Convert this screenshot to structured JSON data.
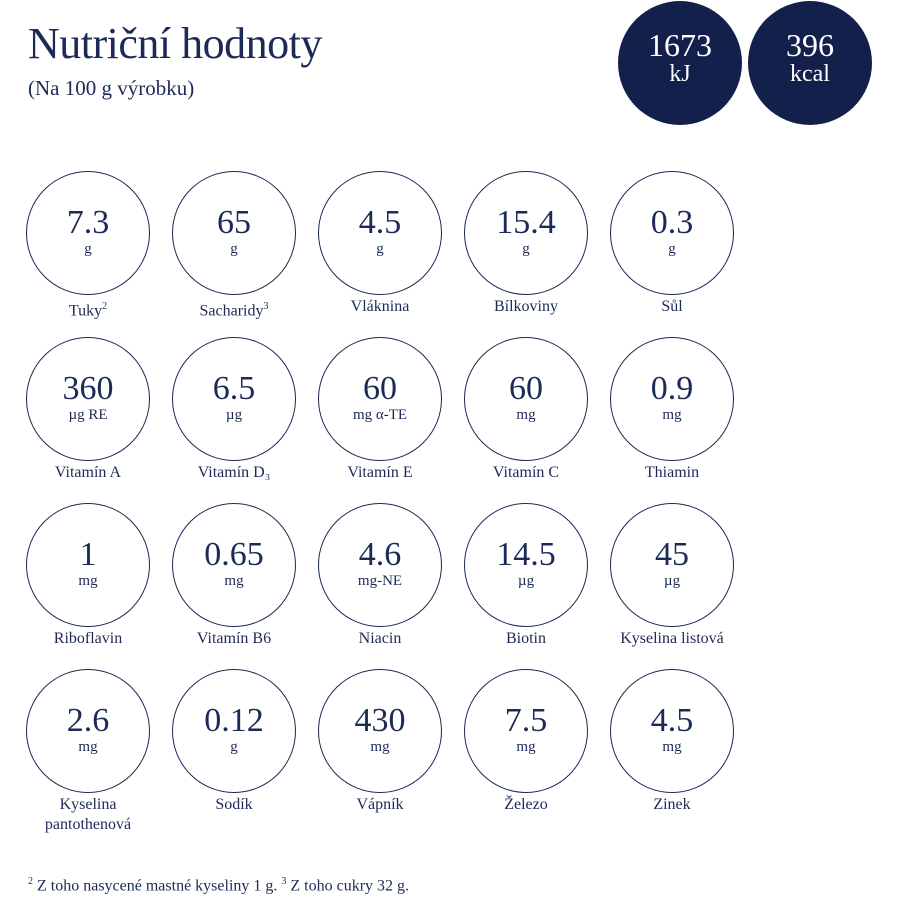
{
  "header": {
    "title": "Nutriční hodnoty",
    "subtitle": "(Na 100 g výrobku)"
  },
  "energy": [
    {
      "value": 1673,
      "unit": "kJ"
    },
    {
      "value": 396,
      "unit": "kcal"
    }
  ],
  "nutrients": [
    {
      "value": 7.3,
      "unit": "g",
      "label": "Tuky",
      "sup": "2"
    },
    {
      "value": 65,
      "unit": "g",
      "label": "Sacharidy",
      "sup": "3"
    },
    {
      "value": 4.5,
      "unit": "g",
      "label": "Vláknina"
    },
    {
      "value": 15.4,
      "unit": "g",
      "label": "Bílkoviny"
    },
    {
      "value": 0.3,
      "unit": "g",
      "label": "Sůl"
    },
    {
      "value": 360,
      "unit": "µg RE",
      "label": "Vitamín A"
    },
    {
      "value": 6.5,
      "unit": "µg",
      "label": "Vitamín D₃"
    },
    {
      "value": 60,
      "unit": "mg α-TE",
      "label": "Vitamín E"
    },
    {
      "value": 60,
      "unit": "mg",
      "label": "Vitamín C"
    },
    {
      "value": 0.9,
      "unit": "mg",
      "label": "Thiamin"
    },
    {
      "value": 1,
      "unit": "mg",
      "label": "Riboflavin"
    },
    {
      "value": 0.65,
      "unit": "mg",
      "label": "Vitamín B6"
    },
    {
      "value": 4.6,
      "unit": "mg-NE",
      "label": "Niacin"
    },
    {
      "value": 14.5,
      "unit": "µg",
      "label": "Biotin"
    },
    {
      "value": 45,
      "unit": "µg",
      "label": "Kyselina listová"
    },
    {
      "value": 2.6,
      "unit": "mg",
      "label": "Kyselina pantothenová"
    },
    {
      "value": 0.12,
      "unit": "g",
      "label": "Sodík"
    },
    {
      "value": 430,
      "unit": "mg",
      "label": "Vápník"
    },
    {
      "value": 7.5,
      "unit": "mg",
      "label": "Železo"
    },
    {
      "value": 4.5,
      "unit": "mg",
      "label": "Zinek"
    }
  ],
  "footnotes": [
    {
      "mark": "2",
      "text": "Z toho nasycené mastné kyseliny 1 g."
    },
    {
      "mark": "3",
      "text": "Z toho cukry 32 g."
    }
  ]
}
